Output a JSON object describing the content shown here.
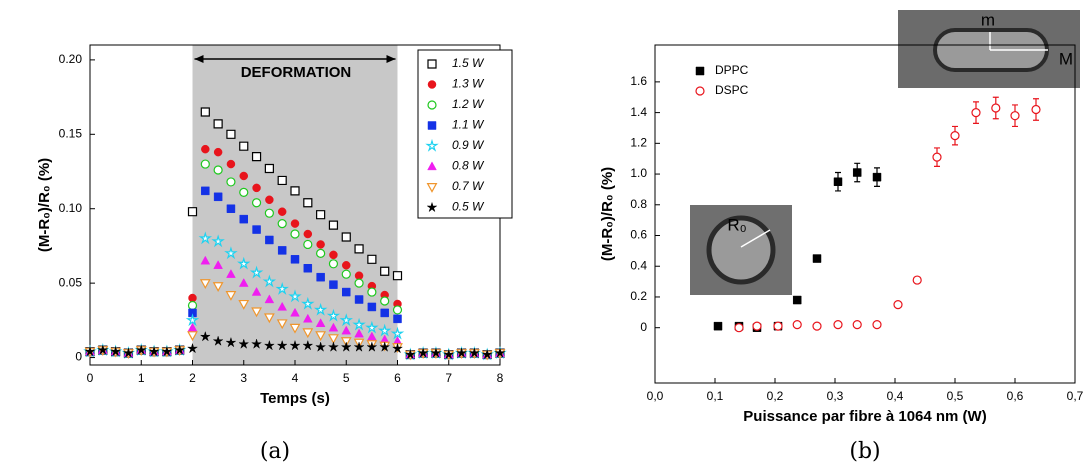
{
  "chart_data": [
    {
      "type": "scatter",
      "xlabel": "Temps (s)",
      "ylabel": "(M-R₀)/R₀ (%)",
      "caption": "(a)",
      "annotations": [
        "DEFORMATION"
      ],
      "shade": [
        2,
        6
      ],
      "shade_color": "#c8c8c8",
      "xlim": [
        0,
        8
      ],
      "ylim": [
        -0.005,
        0.21
      ],
      "xticks": [
        0,
        1,
        2,
        3,
        4,
        5,
        6,
        7,
        8
      ],
      "yticks": [
        0,
        0.05,
        {
          "value": 0.1,
          "label": "0.10"
        },
        0.15,
        {
          "value": 0.2,
          "label": "0.20"
        }
      ],
      "legend": "upper right",
      "x": [
        0,
        0.25,
        0.5,
        0.75,
        1,
        1.25,
        1.5,
        1.75,
        2,
        2.25,
        2.5,
        2.75,
        3,
        3.25,
        3.5,
        3.75,
        4,
        4.25,
        4.5,
        4.75,
        5,
        5.25,
        5.5,
        5.75,
        6,
        6.25,
        6.5,
        6.75,
        7,
        7.25,
        7.5,
        7.75,
        8
      ],
      "series": [
        {
          "name": "1.5 W",
          "color": "#000000",
          "marker": "square-open",
          "values": [
            0.004,
            0.005,
            0.004,
            0.003,
            0.005,
            0.004,
            0.004,
            0.005,
            0.098,
            0.165,
            0.157,
            0.15,
            0.142,
            0.135,
            0.127,
            0.119,
            0.112,
            0.104,
            0.096,
            0.089,
            0.081,
            0.073,
            0.066,
            0.058,
            0.055,
            0.002,
            0.003,
            0.003,
            0.002,
            0.003,
            0.003,
            0.002,
            0.003
          ]
        },
        {
          "name": "1.3 W",
          "color": "#e8141c",
          "marker": "circle",
          "values": [
            0.004,
            0.005,
            0.004,
            0.003,
            0.005,
            0.004,
            0.004,
            0.005,
            0.04,
            0.14,
            0.138,
            0.13,
            0.122,
            0.114,
            0.106,
            0.098,
            0.09,
            0.083,
            0.076,
            0.069,
            0.062,
            0.055,
            0.048,
            0.042,
            0.036,
            0.002,
            0.003,
            0.003,
            0.002,
            0.003,
            0.003,
            0.002,
            0.003
          ]
        },
        {
          "name": "1.2 W",
          "color": "#1ec81e",
          "marker": "circle-open",
          "values": [
            0.004,
            0.005,
            0.004,
            0.003,
            0.005,
            0.004,
            0.004,
            0.005,
            0.035,
            0.13,
            0.126,
            0.118,
            0.111,
            0.104,
            0.097,
            0.09,
            0.083,
            0.076,
            0.07,
            0.063,
            0.056,
            0.05,
            0.044,
            0.038,
            0.032,
            0.002,
            0.003,
            0.003,
            0.002,
            0.003,
            0.003,
            0.002,
            0.003
          ]
        },
        {
          "name": "1.1 W",
          "color": "#1432e6",
          "marker": "square",
          "values": [
            0.004,
            0.005,
            0.004,
            0.003,
            0.005,
            0.004,
            0.004,
            0.005,
            0.03,
            0.112,
            0.108,
            0.1,
            0.093,
            0.086,
            0.079,
            0.072,
            0.066,
            0.06,
            0.054,
            0.049,
            0.044,
            0.039,
            0.034,
            0.03,
            0.026,
            0.002,
            0.003,
            0.003,
            0.002,
            0.003,
            0.003,
            0.002,
            0.003
          ]
        },
        {
          "name": "0.9 W",
          "color": "#1ed2f0",
          "marker": "star-open",
          "values": [
            0.004,
            0.005,
            0.004,
            0.003,
            0.005,
            0.004,
            0.004,
            0.005,
            0.025,
            0.08,
            0.078,
            0.07,
            0.063,
            0.057,
            0.051,
            0.046,
            0.041,
            0.036,
            0.032,
            0.028,
            0.025,
            0.022,
            0.02,
            0.018,
            0.016,
            0.002,
            0.003,
            0.003,
            0.002,
            0.003,
            0.003,
            0.002,
            0.003
          ]
        },
        {
          "name": "0.8 W",
          "color": "#f01ef0",
          "marker": "triangle",
          "values": [
            0.004,
            0.005,
            0.004,
            0.003,
            0.005,
            0.004,
            0.004,
            0.005,
            0.02,
            0.065,
            0.062,
            0.056,
            0.05,
            0.044,
            0.039,
            0.034,
            0.03,
            0.026,
            0.023,
            0.02,
            0.018,
            0.016,
            0.014,
            0.012,
            0.011,
            0.002,
            0.003,
            0.003,
            0.002,
            0.003,
            0.003,
            0.002,
            0.003
          ]
        },
        {
          "name": "0.7 W",
          "color": "#f0962d",
          "marker": "triangle-down-open",
          "values": [
            0.004,
            0.005,
            0.004,
            0.003,
            0.005,
            0.004,
            0.004,
            0.005,
            0.015,
            0.05,
            0.048,
            0.042,
            0.036,
            0.031,
            0.027,
            0.023,
            0.02,
            0.017,
            0.015,
            0.013,
            0.011,
            0.01,
            0.009,
            0.008,
            0.007,
            0.002,
            0.003,
            0.003,
            0.002,
            0.003,
            0.003,
            0.002,
            0.003
          ]
        },
        {
          "name": "0.5 W",
          "color": "#000000",
          "marker": "star",
          "values": [
            0.004,
            0.005,
            0.004,
            0.003,
            0.005,
            0.004,
            0.004,
            0.005,
            0.006,
            0.014,
            0.011,
            0.01,
            0.009,
            0.009,
            0.008,
            0.008,
            0.008,
            0.008,
            0.007,
            0.007,
            0.007,
            0.007,
            0.007,
            0.007,
            0.006,
            0.002,
            0.003,
            0.003,
            0.002,
            0.003,
            0.003,
            0.002,
            0.003
          ]
        }
      ]
    },
    {
      "type": "scatter",
      "xlabel": "Puissance par fibre à 1064 nm (W)",
      "ylabel": "(M-R₀)/R₀ (%)",
      "caption": "(b)",
      "annotations": [
        "m",
        "M",
        "R₀"
      ],
      "xlim": [
        0,
        0.7
      ],
      "ylim": [
        -0.36,
        1.84
      ],
      "xticks": [
        {
          "value": 0,
          "label": "0,0"
        },
        {
          "value": 0.1,
          "label": "0,1"
        },
        {
          "value": 0.2,
          "label": "0,2"
        },
        {
          "value": 0.3,
          "label": "0,3"
        },
        {
          "value": 0.4,
          "label": "0,4"
        },
        {
          "value": 0.5,
          "label": "0,5"
        },
        {
          "value": 0.6,
          "label": "0,6"
        },
        {
          "value": 0.7,
          "label": "0,7"
        }
      ],
      "yticks": [
        0,
        0.2,
        0.4,
        0.6,
        0.8,
        {
          "value": 1,
          "label": "1.0"
        },
        1.2,
        1.4,
        1.6
      ],
      "legend": "upper left",
      "series": [
        {
          "name": "DPPC",
          "color": "#000000",
          "marker": "square",
          "x": [
            0.105,
            0.14,
            0.17,
            0.205,
            0.237,
            0.27,
            0.305,
            0.337,
            0.37
          ],
          "values": [
            0.01,
            0.01,
            0.0,
            0.01,
            0.18,
            0.45,
            0.95,
            1.01,
            0.98
          ],
          "errors": [
            0,
            0,
            0,
            0,
            0,
            0,
            0.06,
            0.06,
            0.06
          ]
        },
        {
          "name": "DSPC",
          "color": "#e8141c",
          "marker": "circle-open",
          "x": [
            0.14,
            0.17,
            0.205,
            0.237,
            0.27,
            0.305,
            0.337,
            0.37,
            0.405,
            0.437,
            0.47,
            0.5,
            0.535,
            0.568,
            0.6,
            0.635
          ],
          "values": [
            0.0,
            0.01,
            0.01,
            0.02,
            0.01,
            0.02,
            0.02,
            0.02,
            0.15,
            0.31,
            1.11,
            1.25,
            1.4,
            1.43,
            1.38,
            1.42
          ],
          "errors": [
            0,
            0,
            0,
            0,
            0,
            0,
            0,
            0,
            0,
            0,
            0.06,
            0.06,
            0.07,
            0.07,
            0.07,
            0.07
          ]
        }
      ]
    }
  ]
}
